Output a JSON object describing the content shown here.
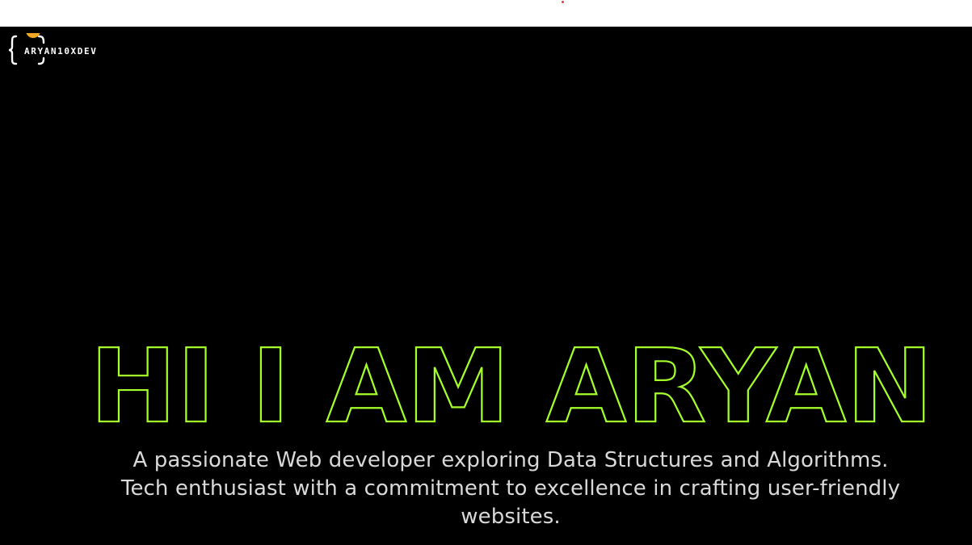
{
  "brand": {
    "name": "ARYAN10XDEV",
    "accent_dot_color": "#f5a623"
  },
  "hero": {
    "title": "HI I AM ARYAN",
    "title_stroke_color": "#a4ff2a",
    "description": "A passionate Web developer exploring Data Structures and Algorithms. Tech enthusiast with a commitment to excellence in crafting user-friendly websites."
  },
  "colors": {
    "background": "#000000",
    "top_bar": "#ffffff",
    "description_text": "#d9d9d9"
  }
}
